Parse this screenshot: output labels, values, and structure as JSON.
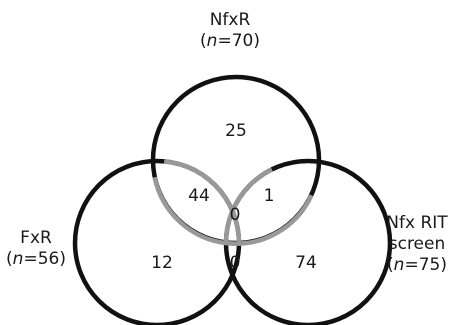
{
  "diagram": {
    "type": "venn",
    "sets": [
      {
        "id": "nfxr",
        "name": "NfxR",
        "count_var": "n",
        "count_value": "70"
      },
      {
        "id": "fxr",
        "name": "FxR",
        "count_var": "n",
        "count_value": "56"
      },
      {
        "id": "rit",
        "name": [
          "Nfx RIT",
          "screen"
        ],
        "count_var": "n",
        "count_value": "75"
      }
    ],
    "regions": {
      "nfxr_only": "25",
      "fxr_only": "12",
      "rit_only": "74",
      "nfxr_fxr": "44",
      "nfxr_rit": "1",
      "fxr_rit": "0",
      "all_three": "0"
    },
    "colors": {
      "outline": "#111111",
      "overlap_arc": "#999999",
      "text": "#1a1a1a"
    }
  }
}
